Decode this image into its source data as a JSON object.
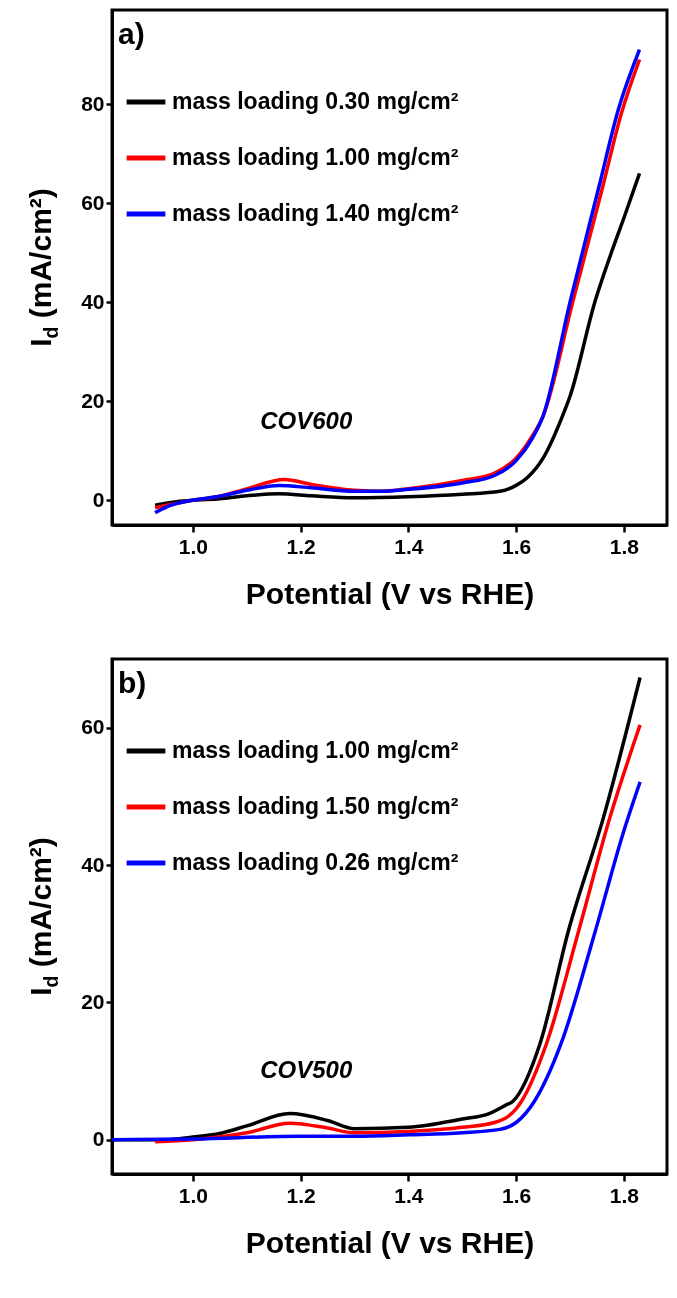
{
  "chart_data": [
    {
      "type": "line",
      "title": "a)",
      "xlabel": "Potential (V vs RHE)",
      "ylabel": "I$_{d}$ (mA/cm²)",
      "annotations": [
        "COV600"
      ],
      "xlim": [
        0.85,
        1.88
      ],
      "xticks": [
        {
          "value": 1.0,
          "label": "1.0"
        },
        1.2,
        1.4,
        1.6,
        1.8
      ],
      "ylim": [
        -5,
        99
      ],
      "yticks": [
        0,
        20,
        40,
        60,
        80
      ],
      "grid": false,
      "legend": "top left",
      "series": [
        {
          "name": "mass loading 0.30 mg/cm²",
          "color": "#000000",
          "x": [
            0.93,
            0.97,
            1.0,
            1.05,
            1.1,
            1.16,
            1.22,
            1.3,
            1.4,
            1.5,
            1.57,
            1.6,
            1.62,
            1.65,
            1.686,
            1.7,
            1.746,
            1.78,
            1.8,
            1.829
          ],
          "values": [
            -1,
            -0.3,
            0,
            0.3,
            0.9,
            1.3,
            0.9,
            0.5,
            0.7,
            1.2,
            1.8,
            3,
            4.5,
            8.5,
            17,
            21,
            40,
            51,
            57,
            66
          ]
        },
        {
          "name": "mass loading 1.00 mg/cm²",
          "color": "#ff0000",
          "x": [
            0.93,
            1.0,
            1.05,
            1.1,
            1.17,
            1.22,
            1.3,
            1.35,
            1.4,
            1.5,
            1.56,
            1.6,
            1.63,
            1.65,
            1.705,
            1.76,
            1.795,
            1.829
          ],
          "values": [
            -1.5,
            0,
            0.8,
            2.3,
            4.2,
            3.2,
            2,
            1.8,
            2.3,
            4,
            5.5,
            8.5,
            13,
            17,
            40,
            63,
            78,
            89
          ]
        },
        {
          "name": "mass loading 1.40 mg/cm²",
          "color": "#0000ff",
          "x": [
            0.93,
            0.96,
            1.0,
            1.05,
            1.1,
            1.16,
            1.22,
            1.3,
            1.35,
            1.4,
            1.5,
            1.56,
            1.6,
            1.63,
            1.65,
            1.7,
            1.753,
            1.79,
            1.829
          ],
          "values": [
            -2.5,
            -1,
            0,
            0.8,
            2,
            3,
            2.5,
            1.8,
            1.8,
            2.2,
            3.5,
            5,
            8,
            12.5,
            17,
            40,
            63,
            79,
            91
          ]
        }
      ]
    },
    {
      "type": "line",
      "title": "b)",
      "xlabel": "Potential (V vs RHE)",
      "ylabel": "I$_{d}$ (mA/cm²)",
      "annotations": [
        "COV500"
      ],
      "xlim": [
        0.85,
        1.88
      ],
      "xticks": [
        {
          "value": 1.0,
          "label": "1.0"
        },
        1.2,
        1.4,
        1.6,
        1.8
      ],
      "ylim": [
        -5,
        70
      ],
      "yticks": [
        0,
        20,
        40,
        60
      ],
      "grid": false,
      "legend": "top left",
      "series": [
        {
          "name": "mass loading 1.00 mg/cm²",
          "color": "#000000",
          "x": [
            0.85,
            0.95,
            1.0,
            1.05,
            1.1,
            1.18,
            1.25,
            1.3,
            1.4,
            1.5,
            1.55,
            1.58,
            1.594,
            1.644,
            1.697,
            1.762,
            1.83
          ],
          "values": [
            0,
            0,
            0.4,
            0.9,
            2,
            3.8,
            2.8,
            1.6,
            1.8,
            3,
            3.8,
            5,
            5.6,
            13.9,
            30.4,
            46.9,
            67.3
          ]
        },
        {
          "name": "mass loading 1.50 mg/cm²",
          "color": "#ff0000",
          "x": [
            0.93,
            1.0,
            1.1,
            1.18,
            1.25,
            1.3,
            1.4,
            1.5,
            1.56,
            1.6,
            1.61,
            1.656,
            1.716,
            1.774,
            1.83
          ],
          "values": [
            -0.3,
            0,
            1,
            2.4,
            1.7,
            1,
            1.2,
            1.8,
            2.5,
            4.5,
            5.6,
            13.9,
            30.4,
            46.9,
            60.4
          ]
        },
        {
          "name": "mass loading 0.26 mg/cm²",
          "color": "#0000ff",
          "x": [
            0.85,
            1.0,
            1.2,
            1.3,
            1.4,
            1.5,
            1.57,
            1.6,
            1.634,
            1.683,
            1.747,
            1.8,
            1.83
          ],
          "values": [
            0,
            0.1,
            0.5,
            0.5,
            0.7,
            1,
            1.5,
            2.5,
            5.6,
            13.9,
            30.4,
            45,
            52.1
          ]
        }
      ]
    }
  ]
}
